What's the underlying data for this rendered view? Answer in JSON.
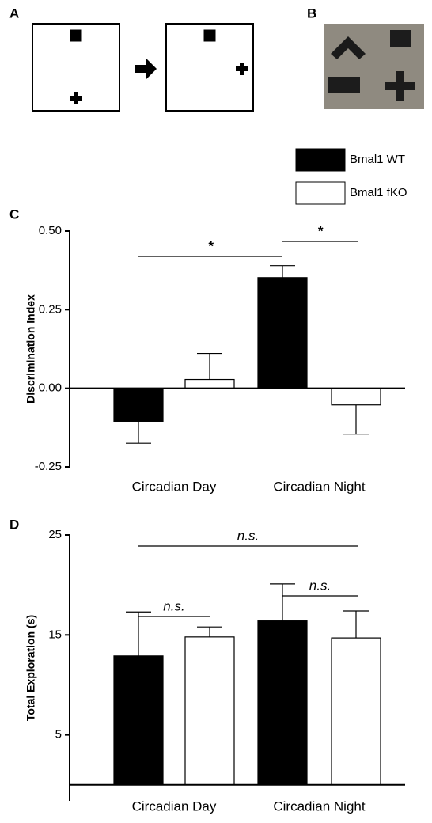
{
  "figure": {
    "panel_a": "A",
    "panel_b": "B"
  },
  "chart_data": [
    {
      "type": "bar",
      "panel": "C",
      "y_label": "Discrimination Index",
      "categories": [
        "Circadian Day",
        "Circadian Night"
      ],
      "series": [
        {
          "name": "Bmal1 WT",
          "color": "#000000",
          "label_color": "#000000",
          "values": [
            -0.105,
            0.352
          ],
          "errors": [
            0.07,
            0.038
          ]
        },
        {
          "name": "Bmal1 fKO",
          "color": "#ffffff",
          "label_color": "#c00000",
          "values": [
            0.028,
            -0.053
          ],
          "errors": [
            0.083,
            0.093
          ]
        }
      ],
      "ylim": [
        -0.25,
        0.5
      ],
      "yticks": [
        {
          "value": 0.5,
          "label": "0.50"
        },
        {
          "value": 0.25,
          "label": "0.25"
        },
        {
          "value": 0,
          "label": "0.00"
        },
        {
          "value": -0.25,
          "label": "-0.25"
        }
      ],
      "annotations": [
        "*",
        "*"
      ]
    },
    {
      "type": "bar",
      "panel": "D",
      "y_label": "Total Exploration (s)",
      "categories": [
        "Circadian Day",
        "Circadian Night"
      ],
      "series": [
        {
          "color": "#000000",
          "values": [
            12.9,
            16.4
          ],
          "errors": [
            4.4,
            3.7
          ]
        },
        {
          "color": "#ffffff",
          "values": [
            14.8,
            14.7
          ],
          "errors": [
            1.0,
            2.7
          ]
        }
      ],
      "ylim": [
        -1.6,
        25
      ],
      "yticks": [
        25,
        15,
        5
      ],
      "annotations": [
        "n.s.",
        "n.s.",
        "n.s."
      ]
    }
  ]
}
